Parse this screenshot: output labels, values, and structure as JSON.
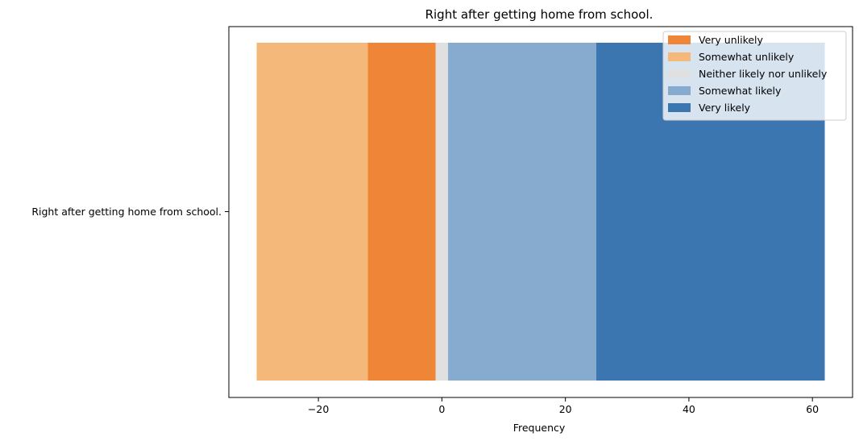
{
  "chart_data": {
    "type": "bar",
    "orientation": "horizontal",
    "stacking": "diverging",
    "title": "Right after getting home from school.",
    "xlabel": "Frequency",
    "ylabel": "",
    "categories": [
      "Right after getting home from school."
    ],
    "xlim": [
      -34.5,
      66.5
    ],
    "xticks": [
      -20,
      0,
      20,
      40,
      60
    ],
    "xtick_labels": [
      "−20",
      "0",
      "20",
      "40",
      "60"
    ],
    "grid": false,
    "legend_position": "upper-right",
    "segments": [
      {
        "name": "Somewhat unlikely",
        "start": -30,
        "end": -12,
        "color": "#f4b97a"
      },
      {
        "name": "Very unlikely",
        "start": -12,
        "end": -1,
        "color": "#ef8637"
      },
      {
        "name": "Neither likely nor unlikely",
        "start": -1,
        "end": 1,
        "color": "#e0e0e0"
      },
      {
        "name": "Somewhat likely",
        "start": 1,
        "end": 25,
        "color": "#86abcf"
      },
      {
        "name": "Very likely",
        "start": 25,
        "end": 62,
        "color": "#3b76b0"
      }
    ],
    "legend": [
      {
        "name": "Very unlikely",
        "color": "#ef8637"
      },
      {
        "name": "Somewhat unlikely",
        "color": "#f4b97a"
      },
      {
        "name": "Neither likely nor unlikely",
        "color": "#e0e0e0"
      },
      {
        "name": "Somewhat likely",
        "color": "#86abcf"
      },
      {
        "name": "Very likely",
        "color": "#3b76b0"
      }
    ]
  }
}
